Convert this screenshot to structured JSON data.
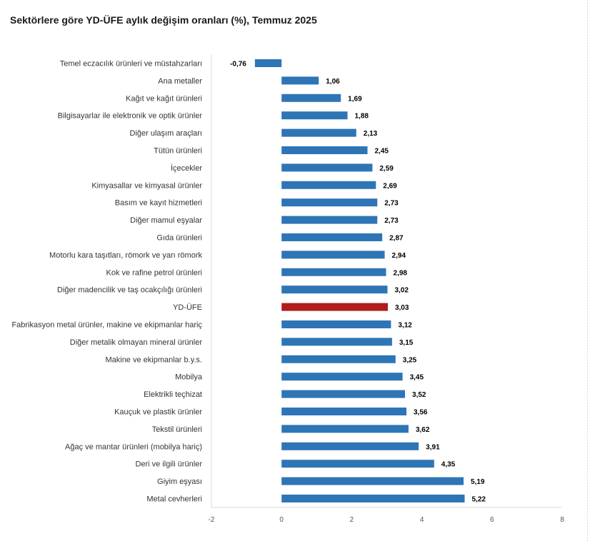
{
  "chart_data": {
    "type": "bar",
    "orientation": "horizontal",
    "title": "Sektörlere göre YD-ÜFE aylık değişim oranları (%), Temmuz 2025",
    "categories": [
      "Temel eczacılık ürünleri ve müstahzarları",
      "Ana metaller",
      "Kağıt ve kağıt ürünleri",
      "Bilgisayarlar ile elektronik ve optik ürünler",
      "Diğer ulaşım araçları",
      "Tütün ürünleri",
      "İçecekler",
      "Kimyasallar ve kimyasal ürünler",
      "Basım ve kayıt hizmetleri",
      "Diğer mamul eşyalar",
      "Gıda ürünleri",
      "Motorlu kara taşıtları, römork ve yarı römork",
      "Kok ve rafine petrol ürünleri",
      "Diğer madencilik ve taş ocakçılığı ürünleri",
      "YD-ÜFE",
      "Fabrikasyon metal ürünler, makine ve ekipmanlar hariç",
      "Diğer metalik olmayan mineral ürünler",
      "Makine ve ekipmanlar b.y.s.",
      "Mobilya",
      "Elektrikli teçhizat",
      "Kauçuk ve plastik ürünler",
      "Tekstil ürünleri",
      "Ağaç ve mantar ürünleri (mobilya hariç)",
      "Deri ve ilgili ürünler",
      "Giyim eşyası",
      "Metal cevherleri"
    ],
    "values": [
      -0.76,
      1.06,
      1.69,
      1.88,
      2.13,
      2.45,
      2.59,
      2.69,
      2.73,
      2.73,
      2.87,
      2.94,
      2.98,
      3.02,
      3.03,
      3.12,
      3.15,
      3.25,
      3.45,
      3.52,
      3.56,
      3.62,
      3.91,
      4.35,
      5.19,
      5.22
    ],
    "value_labels": [
      "-0,76",
      "1,06",
      "1,69",
      "1,88",
      "2,13",
      "2,45",
      "2,59",
      "2,69",
      "2,73",
      "2,73",
      "2,87",
      "2,94",
      "2,98",
      "3,02",
      "3,03",
      "3,12",
      "3,15",
      "3,25",
      "3,45",
      "3,52",
      "3,56",
      "3,62",
      "3,91",
      "4,35",
      "5,19",
      "5,22"
    ],
    "highlight_category": "YD-ÜFE",
    "xlim": [
      -2,
      8
    ],
    "xticks": [
      -2,
      0,
      2,
      4,
      6,
      8
    ],
    "xtick_labels": [
      "-2",
      "0",
      "2",
      "4",
      "6",
      "8"
    ],
    "xlabel": "",
    "ylabel": "",
    "grid": false,
    "legend": "none",
    "colors": {
      "bar": "#2e75b6",
      "highlight": "#b01c1c",
      "axis": "#d9d9d9"
    }
  }
}
